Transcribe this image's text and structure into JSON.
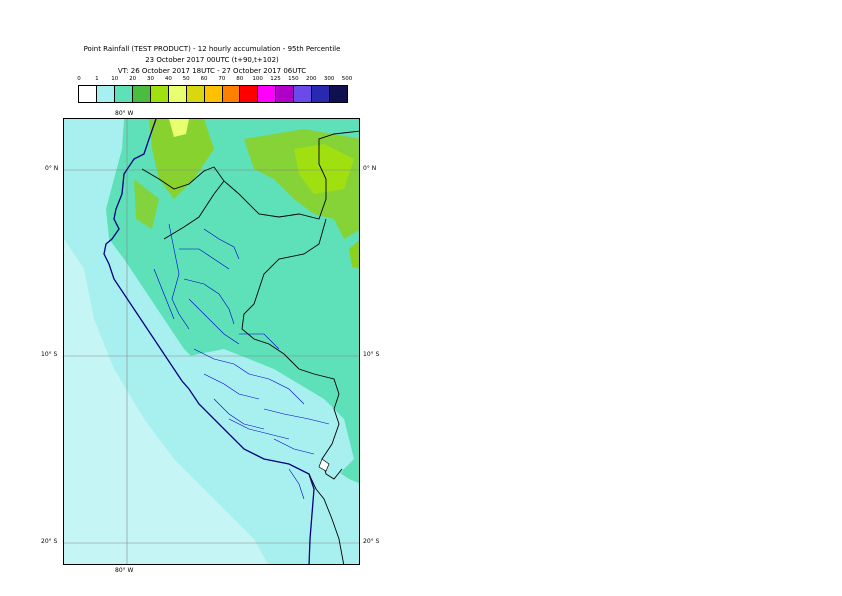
{
  "title": {
    "line1": "Point Rainfall (TEST PRODUCT) - 12 hourly accumulation - 95th Percentile",
    "line2": "23 October 2017 00UTC (t+90,t+102)",
    "line3": "VT: 26 October 2017 18UTC - 27 October 2017 06UTC"
  },
  "legend": {
    "values": [
      "0",
      "1",
      "10",
      "20",
      "30",
      "40",
      "50",
      "60",
      "70",
      "80",
      "100",
      "125",
      "150",
      "200",
      "300",
      "500"
    ],
    "colors": [
      "#ffffff",
      "#a8f0f0",
      "#5ee0b8",
      "#4cbc40",
      "#a0e010",
      "#e8ff70",
      "#d8d810",
      "#ffc000",
      "#ff8000",
      "#ff0000",
      "#ff00ff",
      "#b000c8",
      "#6a4ae8",
      "#2828b0",
      "#101050"
    ]
  },
  "map": {
    "colors": {
      "sea_light": "#a8f0f0",
      "land_teal": "#5ee0b8",
      "land_light": "#a8f0f0",
      "green": "#8cd020",
      "green_dark": "#4cbc40",
      "yellow": "#e8ff70",
      "coast": "#000080",
      "border": "#000000",
      "admin": "#0000cc",
      "grid": "#888888"
    },
    "top_lon_label": "80° W",
    "bottom_lon_label": "80° W",
    "lat_labels_left": [
      "0° N",
      "10° S",
      "20° S"
    ],
    "lat_labels_right": [
      "0° N",
      "10° S",
      "20° S"
    ]
  }
}
